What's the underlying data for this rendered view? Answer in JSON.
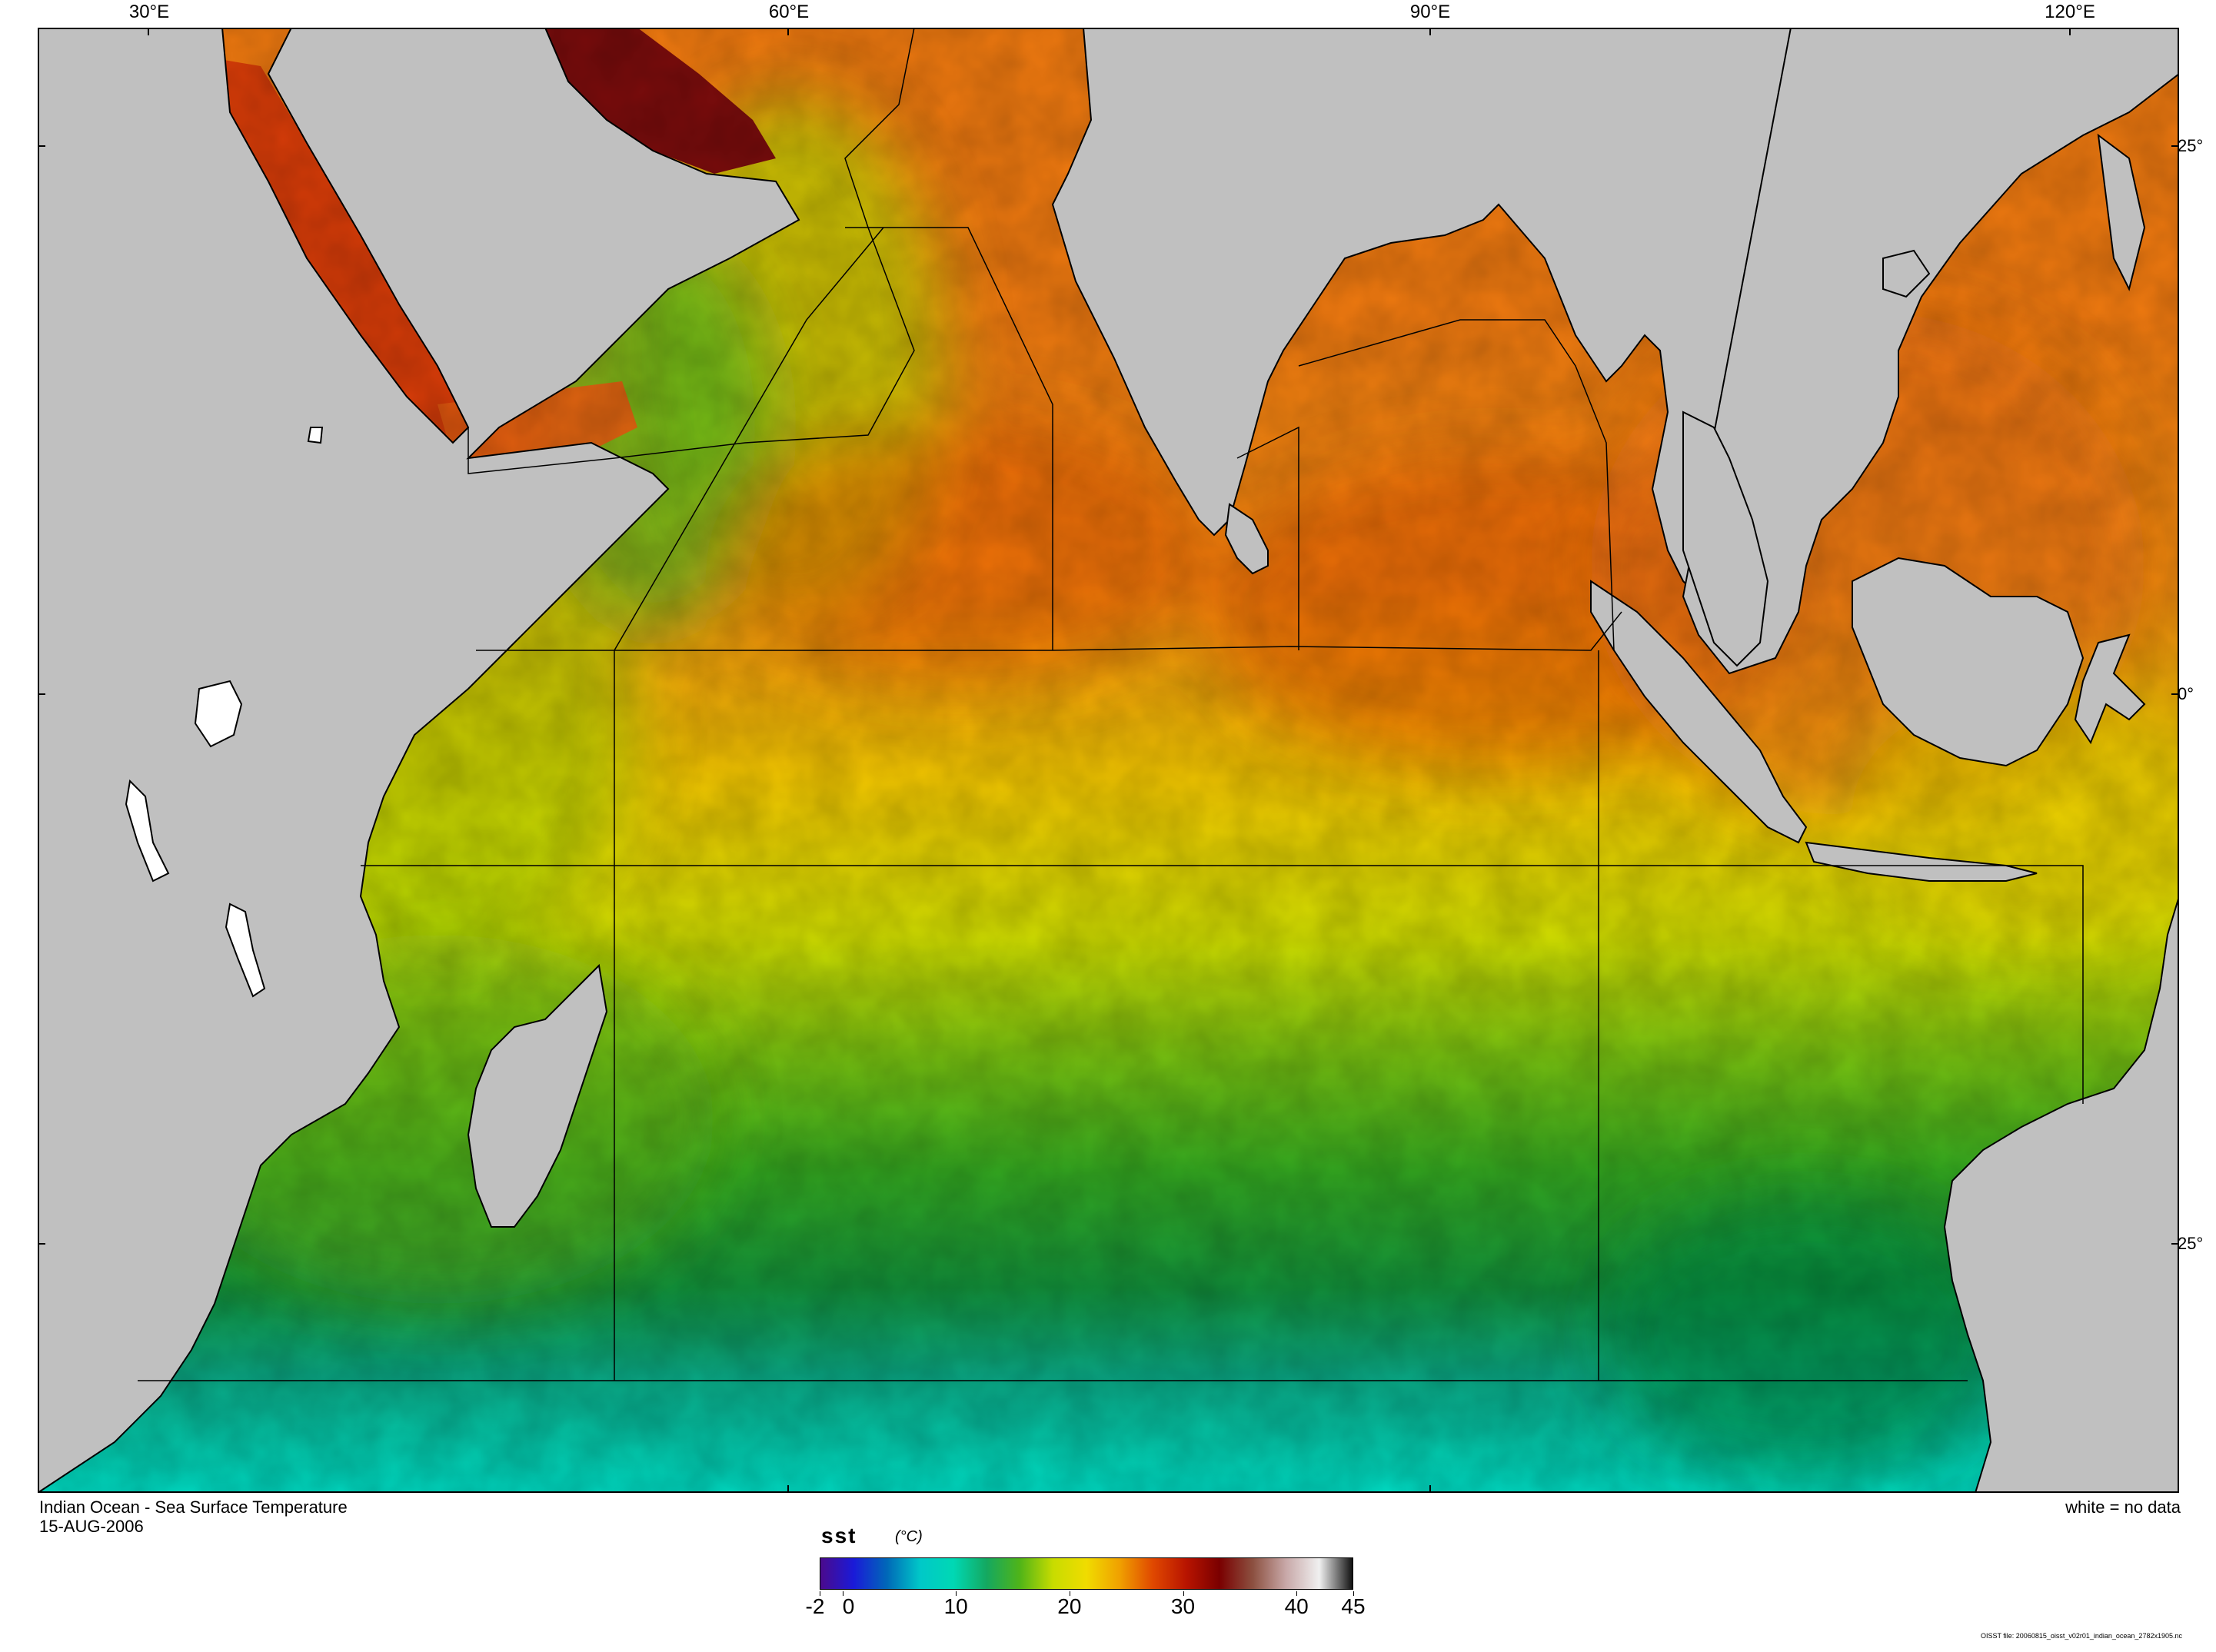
{
  "map": {
    "region": "Indian Ocean",
    "longitude_labels": [
      "30°E",
      "60°E",
      "90°E",
      "120°E"
    ],
    "latitude_labels": [
      "25°",
      "0°",
      "25°"
    ],
    "land_color": "#c0c0c0",
    "no_data_color": "#ffffff",
    "boundary_line_color": "#000000"
  },
  "caption": {
    "title": "Indian Ocean - Sea Surface Temperature",
    "date": "15-AUG-2006",
    "no_data_note": "white = no data"
  },
  "colorbar": {
    "variable": "sst",
    "unit": "(°C)",
    "range": [
      -2,
      45
    ],
    "tick_labels": [
      "-2",
      "0",
      "10",
      "20",
      "30",
      "40",
      "45"
    ],
    "tick_values": [
      -2,
      0,
      10,
      20,
      30,
      40,
      45
    ],
    "palette": [
      "#4b0a8c",
      "#1a1ad8",
      "#0068b8",
      "#00c8c8",
      "#00d8b4",
      "#14a860",
      "#50b418",
      "#c8dc00",
      "#f0dc00",
      "#f0a000",
      "#e04800",
      "#b81400",
      "#7a0000",
      "#8c5040",
      "#c8a8a8",
      "#f0f0f0",
      "#101010"
    ]
  },
  "footer": {
    "file_note": "OISST file: 20060815_oisst_v02r01_indian_ocean_2782x1905.nc"
  }
}
